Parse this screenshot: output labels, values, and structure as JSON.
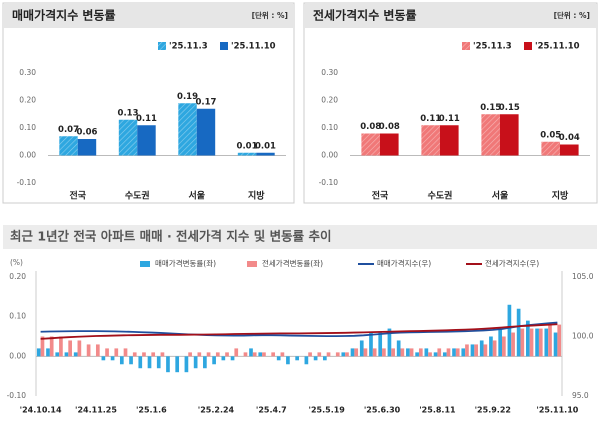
{
  "chart_data": [
    {
      "type": "bar",
      "title": "매매가격지수 변동률",
      "unit": "[단위 : %]",
      "categories": [
        "전국",
        "수도권",
        "서울",
        "지방"
      ],
      "series": [
        {
          "name": "'25.11.3",
          "color": "#2ea7e0",
          "pattern": "hatch",
          "values": [
            0.07,
            0.13,
            0.19,
            0.01
          ]
        },
        {
          "name": "'25.11.10",
          "color": "#1769c2",
          "values": [
            0.06,
            0.11,
            0.17,
            0.01
          ]
        }
      ],
      "ylim": [
        -0.1,
        0.3
      ],
      "yticks": [
        {
          "value": -0.1,
          "label": "-0.10"
        },
        {
          "value": 0,
          "label": "0.00"
        },
        {
          "value": 0.1,
          "label": "0.10"
        },
        {
          "value": 0.2,
          "label": "0.20"
        },
        {
          "value": 0.3,
          "label": "0.30"
        }
      ],
      "grid": false
    },
    {
      "type": "bar",
      "title": "전세가격지수 변동률",
      "unit": "[단위 : %]",
      "categories": [
        "전국",
        "수도권",
        "서울",
        "지방"
      ],
      "series": [
        {
          "name": "'25.11.3",
          "color": "#f07878",
          "pattern": "hatch",
          "values": [
            0.08,
            0.11,
            0.15,
            0.05
          ]
        },
        {
          "name": "'25.11.10",
          "color": "#c8101a",
          "values": [
            0.08,
            0.11,
            0.15,
            0.04
          ]
        }
      ],
      "ylim": [
        -0.1,
        0.3
      ],
      "yticks": [
        {
          "value": -0.1,
          "label": "-0.10"
        },
        {
          "value": 0,
          "label": "0.00"
        },
        {
          "value": 0.1,
          "label": "0.10"
        },
        {
          "value": 0.2,
          "label": "0.20"
        },
        {
          "value": 0.3,
          "label": "0.30"
        }
      ],
      "grid": false
    },
    {
      "type": "combo",
      "title": "최근 1년간 전국 아파트 매매 · 전세가격 지수 및 변동률 추이",
      "ylabel": "(%)",
      "categories": [
        "'24.10.14",
        null,
        null,
        null,
        null,
        null,
        "'24.11.25",
        null,
        null,
        null,
        null,
        null,
        "'25.1.6",
        null,
        null,
        null,
        null,
        null,
        null,
        "'25.2.24",
        null,
        null,
        null,
        null,
        null,
        "'25.4.7",
        null,
        null,
        null,
        null,
        null,
        "'25.5.19",
        null,
        null,
        null,
        null,
        null,
        "'25.6.30",
        null,
        null,
        null,
        null,
        null,
        "'25.8.11",
        null,
        null,
        null,
        null,
        null,
        "'25.9.22",
        null,
        null,
        null,
        null,
        null,
        null,
        "'25.11.10"
      ],
      "series": [
        {
          "name": "매매가격변동률(좌)",
          "type": "bar",
          "color": "#2ea7e0",
          "values": [
            0.02,
            0.02,
            0.01,
            0.01,
            0.01,
            0.0,
            0.0,
            -0.01,
            -0.01,
            -0.02,
            -0.02,
            -0.03,
            -0.03,
            -0.03,
            -0.04,
            -0.04,
            -0.04,
            -0.03,
            -0.03,
            -0.02,
            -0.01,
            -0.01,
            0.0,
            0.02,
            0.01,
            0.0,
            -0.01,
            -0.02,
            -0.01,
            -0.02,
            -0.01,
            -0.01,
            0.0,
            0.01,
            0.02,
            0.04,
            0.06,
            0.06,
            0.07,
            0.04,
            0.02,
            0.01,
            0.02,
            0.01,
            0.01,
            0.02,
            0.02,
            0.03,
            0.04,
            0.05,
            0.07,
            0.13,
            0.12,
            0.09,
            0.07,
            0.07,
            0.06
          ]
        },
        {
          "name": "전세가격변동률(좌)",
          "type": "bar",
          "color": "#f28a8a",
          "values": [
            0.05,
            0.05,
            0.05,
            0.04,
            0.04,
            0.03,
            0.03,
            0.02,
            0.02,
            0.02,
            0.01,
            0.01,
            0.01,
            0.01,
            0.0,
            0.0,
            0.01,
            0.01,
            0.01,
            0.01,
            0.01,
            0.02,
            0.01,
            0.01,
            0.01,
            0.01,
            0.01,
            0.0,
            0.0,
            0.01,
            0.01,
            0.01,
            0.01,
            0.01,
            0.02,
            0.02,
            0.02,
            0.02,
            0.02,
            0.02,
            0.02,
            0.02,
            0.01,
            0.02,
            0.02,
            0.02,
            0.03,
            0.03,
            0.03,
            0.04,
            0.05,
            0.06,
            0.07,
            0.07,
            0.07,
            0.08,
            0.08
          ]
        },
        {
          "name": "매매가격지수(우)",
          "type": "line",
          "axis": "y2",
          "color": "#1f4f9e",
          "values": [
            100.4,
            100.42,
            100.43,
            100.44,
            100.45,
            100.45,
            100.45,
            100.44,
            100.43,
            100.41,
            100.39,
            100.36,
            100.33,
            100.3,
            100.26,
            100.22,
            100.18,
            100.15,
            100.12,
            100.1,
            100.09,
            100.08,
            100.08,
            100.1,
            100.11,
            100.11,
            100.1,
            100.08,
            100.07,
            100.05,
            100.04,
            100.03,
            100.03,
            100.04,
            100.06,
            100.1,
            100.16,
            100.22,
            100.29,
            100.33,
            100.35,
            100.36,
            100.38,
            100.39,
            100.4,
            100.42,
            100.44,
            100.47,
            100.51,
            100.56,
            100.63,
            100.76,
            100.88,
            100.97,
            101.04,
            101.11,
            101.17
          ]
        },
        {
          "name": "전세가격지수(우)",
          "type": "line",
          "axis": "y2",
          "color": "#a3101a",
          "values": [
            99.8,
            99.85,
            99.9,
            99.94,
            99.98,
            100.01,
            100.04,
            100.06,
            100.08,
            100.1,
            100.11,
            100.12,
            100.13,
            100.14,
            100.14,
            100.14,
            100.15,
            100.16,
            100.17,
            100.18,
            100.19,
            100.21,
            100.22,
            100.23,
            100.24,
            100.25,
            100.26,
            100.26,
            100.26,
            100.27,
            100.28,
            100.29,
            100.3,
            100.31,
            100.33,
            100.35,
            100.37,
            100.39,
            100.41,
            100.43,
            100.45,
            100.46,
            100.48,
            100.5,
            100.52,
            100.55,
            100.58,
            100.61,
            100.65,
            100.7,
            100.76,
            100.82,
            100.87,
            100.91,
            100.95,
            100.99,
            101.03
          ]
        }
      ],
      "ylim": [
        -0.1,
        0.2
      ],
      "yticks": [
        {
          "value": -0.1,
          "label": "-0.10"
        },
        {
          "value": 0,
          "label": "0.00"
        },
        {
          "value": 0.1,
          "label": "0.10"
        },
        {
          "value": 0.2,
          "label": "0.20"
        }
      ],
      "y2lim": [
        95,
        105
      ],
      "y2ticks": [
        {
          "value": 95,
          "label": "95.0"
        },
        {
          "value": 100,
          "label": "100.0"
        },
        {
          "value": 105,
          "label": "105.0"
        }
      ],
      "grid": false
    }
  ]
}
